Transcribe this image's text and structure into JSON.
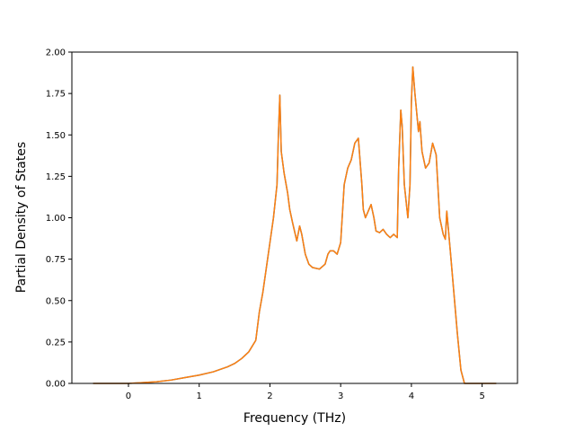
{
  "chart_data": {
    "type": "line",
    "title": "",
    "xlabel": "Frequency (THz)",
    "ylabel": "Partial Density of States",
    "xlim": [
      -0.8,
      5.5
    ],
    "ylim": [
      0.0,
      2.0
    ],
    "xticks": [
      0,
      1,
      2,
      3,
      4,
      5
    ],
    "yticks": [
      0.0,
      0.25,
      0.5,
      0.75,
      1.0,
      1.25,
      1.5,
      1.75,
      2.0
    ],
    "xtick_labels": [
      "0",
      "1",
      "2",
      "3",
      "4",
      "5"
    ],
    "ytick_labels": [
      "0.00",
      "0.25",
      "0.50",
      "0.75",
      "1.00",
      "1.25",
      "1.50",
      "1.75",
      "2.00"
    ],
    "grid": false,
    "series": [
      {
        "color": "#1f77b4",
        "x": [
          -0.5,
          0.0,
          0.2,
          0.4,
          0.6,
          0.8,
          1.0,
          1.2,
          1.4,
          1.5,
          1.6,
          1.7,
          1.8,
          1.85,
          1.9,
          1.95,
          2.0,
          2.05,
          2.1,
          2.12,
          2.14,
          2.16,
          2.2,
          2.25,
          2.28,
          2.32,
          2.38,
          2.42,
          2.45,
          2.5,
          2.55,
          2.6,
          2.7,
          2.78,
          2.82,
          2.85,
          2.9,
          2.95,
          3.0,
          3.05,
          3.1,
          3.15,
          3.2,
          3.25,
          3.3,
          3.32,
          3.35,
          3.4,
          3.43,
          3.47,
          3.5,
          3.55,
          3.6,
          3.65,
          3.7,
          3.75,
          3.8,
          3.82,
          3.85,
          3.87,
          3.9,
          3.95,
          3.98,
          4.0,
          4.02,
          4.05,
          4.1,
          4.12,
          4.15,
          4.2,
          4.25,
          4.3,
          4.35,
          4.4,
          4.45,
          4.48,
          4.5,
          4.55,
          4.6,
          4.65,
          4.7,
          4.75,
          4.8,
          5.2
        ],
        "y": [
          0.0,
          0.0,
          0.005,
          0.01,
          0.02,
          0.035,
          0.05,
          0.07,
          0.1,
          0.12,
          0.15,
          0.19,
          0.26,
          0.43,
          0.55,
          0.7,
          0.85,
          1.0,
          1.2,
          1.5,
          1.74,
          1.4,
          1.27,
          1.15,
          1.05,
          0.97,
          0.86,
          0.95,
          0.9,
          0.78,
          0.72,
          0.7,
          0.69,
          0.72,
          0.78,
          0.8,
          0.8,
          0.78,
          0.85,
          1.2,
          1.3,
          1.35,
          1.45,
          1.48,
          1.2,
          1.05,
          1.0,
          1.05,
          1.08,
          1.0,
          0.92,
          0.91,
          0.93,
          0.9,
          0.88,
          0.9,
          0.88,
          1.3,
          1.65,
          1.55,
          1.2,
          1.0,
          1.2,
          1.7,
          1.91,
          1.75,
          1.52,
          1.58,
          1.4,
          1.3,
          1.33,
          1.45,
          1.38,
          1.0,
          0.9,
          0.87,
          1.04,
          0.8,
          0.55,
          0.3,
          0.08,
          0.0,
          0.0,
          0.0
        ]
      },
      {
        "color": "#ff7f0e",
        "x": [
          -0.5,
          0.0,
          0.2,
          0.4,
          0.6,
          0.8,
          1.0,
          1.2,
          1.4,
          1.5,
          1.6,
          1.7,
          1.8,
          1.85,
          1.9,
          1.95,
          2.0,
          2.05,
          2.1,
          2.12,
          2.14,
          2.16,
          2.2,
          2.25,
          2.28,
          2.32,
          2.38,
          2.42,
          2.45,
          2.5,
          2.55,
          2.6,
          2.7,
          2.78,
          2.82,
          2.85,
          2.9,
          2.95,
          3.0,
          3.05,
          3.1,
          3.15,
          3.2,
          3.25,
          3.3,
          3.32,
          3.35,
          3.4,
          3.43,
          3.47,
          3.5,
          3.55,
          3.6,
          3.65,
          3.7,
          3.75,
          3.8,
          3.82,
          3.85,
          3.87,
          3.9,
          3.95,
          3.98,
          4.0,
          4.02,
          4.05,
          4.1,
          4.12,
          4.15,
          4.2,
          4.25,
          4.3,
          4.35,
          4.4,
          4.45,
          4.48,
          4.5,
          4.55,
          4.6,
          4.65,
          4.7,
          4.75,
          4.8,
          5.2
        ],
        "y": [
          0.0,
          0.0,
          0.005,
          0.01,
          0.02,
          0.035,
          0.05,
          0.07,
          0.1,
          0.12,
          0.15,
          0.19,
          0.26,
          0.43,
          0.55,
          0.7,
          0.85,
          1.0,
          1.2,
          1.5,
          1.74,
          1.4,
          1.27,
          1.15,
          1.05,
          0.97,
          0.86,
          0.95,
          0.9,
          0.78,
          0.72,
          0.7,
          0.69,
          0.72,
          0.78,
          0.8,
          0.8,
          0.78,
          0.85,
          1.2,
          1.3,
          1.35,
          1.45,
          1.48,
          1.2,
          1.05,
          1.0,
          1.05,
          1.08,
          1.0,
          0.92,
          0.91,
          0.93,
          0.9,
          0.88,
          0.9,
          0.88,
          1.3,
          1.65,
          1.55,
          1.2,
          1.0,
          1.2,
          1.7,
          1.91,
          1.75,
          1.52,
          1.58,
          1.4,
          1.3,
          1.33,
          1.45,
          1.38,
          1.0,
          0.9,
          0.87,
          1.04,
          0.8,
          0.55,
          0.3,
          0.08,
          0.0,
          0.0,
          0.0
        ]
      }
    ]
  }
}
